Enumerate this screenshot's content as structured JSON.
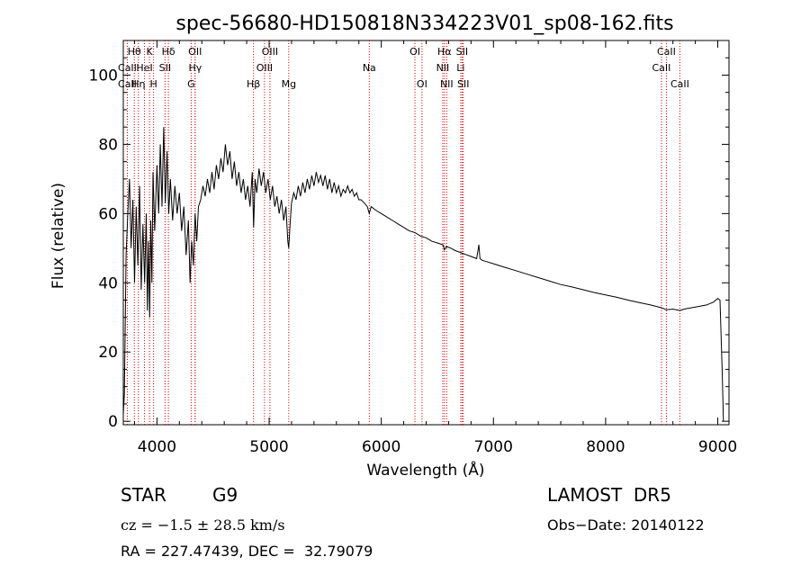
{
  "chart_data": {
    "type": "line",
    "title": "spec-56680-HD150818N334223V01_sp08-162.fits",
    "xlabel": "Wavelength (Å)",
    "ylabel": "Flux (relative)",
    "xlim": [
      3700,
      9100
    ],
    "ylim": [
      -1,
      110
    ],
    "x_ticks": [
      4000,
      5000,
      6000,
      7000,
      8000,
      9000
    ],
    "y_ticks": [
      0,
      20,
      40,
      60,
      80,
      100
    ],
    "grid": false,
    "series": [
      {
        "points": [
          [
            3700,
            2
          ],
          [
            3710,
            8
          ],
          [
            3725,
            48
          ],
          [
            3740,
            60
          ],
          [
            3755,
            70
          ],
          [
            3770,
            50
          ],
          [
            3785,
            64
          ],
          [
            3800,
            40
          ],
          [
            3815,
            62
          ],
          [
            3830,
            45
          ],
          [
            3845,
            68
          ],
          [
            3860,
            38
          ],
          [
            3875,
            57
          ],
          [
            3890,
            40
          ],
          [
            3905,
            60
          ],
          [
            3915,
            32
          ],
          [
            3925,
            52
          ],
          [
            3935,
            30
          ],
          [
            3945,
            58
          ],
          [
            3955,
            40
          ],
          [
            3965,
            72
          ],
          [
            3980,
            55
          ],
          [
            4000,
            74
          ],
          [
            4015,
            60
          ],
          [
            4030,
            80
          ],
          [
            4045,
            62
          ],
          [
            4060,
            85
          ],
          [
            4075,
            63
          ],
          [
            4090,
            78
          ],
          [
            4105,
            60
          ],
          [
            4120,
            70
          ],
          [
            4140,
            58
          ],
          [
            4160,
            68
          ],
          [
            4180,
            60
          ],
          [
            4200,
            66
          ],
          [
            4220,
            55
          ],
          [
            4240,
            62
          ],
          [
            4260,
            48
          ],
          [
            4280,
            58
          ],
          [
            4295,
            40
          ],
          [
            4310,
            52
          ],
          [
            4325,
            45
          ],
          [
            4340,
            60
          ],
          [
            4355,
            52
          ],
          [
            4370,
            62
          ],
          [
            4390,
            64
          ],
          [
            4410,
            68
          ],
          [
            4430,
            65
          ],
          [
            4450,
            70
          ],
          [
            4470,
            66
          ],
          [
            4490,
            72
          ],
          [
            4510,
            67
          ],
          [
            4530,
            74
          ],
          [
            4550,
            70
          ],
          [
            4570,
            76
          ],
          [
            4590,
            72
          ],
          [
            4610,
            80
          ],
          [
            4630,
            74
          ],
          [
            4650,
            78
          ],
          [
            4670,
            70
          ],
          [
            4690,
            75
          ],
          [
            4710,
            68
          ],
          [
            4730,
            72
          ],
          [
            4750,
            66
          ],
          [
            4770,
            70
          ],
          [
            4790,
            64
          ],
          [
            4810,
            68
          ],
          [
            4830,
            62
          ],
          [
            4850,
            72
          ],
          [
            4862,
            56
          ],
          [
            4875,
            70
          ],
          [
            4890,
            66
          ],
          [
            4910,
            73
          ],
          [
            4930,
            68
          ],
          [
            4950,
            72
          ],
          [
            4970,
            66
          ],
          [
            4990,
            70
          ],
          [
            5010,
            64
          ],
          [
            5030,
            68
          ],
          [
            5050,
            62
          ],
          [
            5070,
            65
          ],
          [
            5090,
            60
          ],
          [
            5110,
            64
          ],
          [
            5130,
            58
          ],
          [
            5150,
            62
          ],
          [
            5167,
            52
          ],
          [
            5175,
            50
          ],
          [
            5185,
            56
          ],
          [
            5200,
            63
          ],
          [
            5220,
            66
          ],
          [
            5240,
            64
          ],
          [
            5260,
            68
          ],
          [
            5280,
            65
          ],
          [
            5300,
            69
          ],
          [
            5320,
            66
          ],
          [
            5340,
            70
          ],
          [
            5360,
            67
          ],
          [
            5380,
            71
          ],
          [
            5400,
            68
          ],
          [
            5420,
            72
          ],
          [
            5440,
            69
          ],
          [
            5460,
            71
          ],
          [
            5480,
            68
          ],
          [
            5500,
            71
          ],
          [
            5520,
            67
          ],
          [
            5540,
            70
          ],
          [
            5560,
            66
          ],
          [
            5580,
            69
          ],
          [
            5600,
            66
          ],
          [
            5620,
            68
          ],
          [
            5640,
            65
          ],
          [
            5660,
            67
          ],
          [
            5680,
            66
          ],
          [
            5700,
            68
          ],
          [
            5720,
            66
          ],
          [
            5740,
            67
          ],
          [
            5760,
            65
          ],
          [
            5780,
            66
          ],
          [
            5800,
            64
          ],
          [
            5820,
            64
          ],
          [
            5850,
            63
          ],
          [
            5875,
            62
          ],
          [
            5893,
            60
          ],
          [
            5910,
            62
          ],
          [
            5950,
            61
          ],
          [
            6000,
            60
          ],
          [
            6050,
            59
          ],
          [
            6100,
            58
          ],
          [
            6150,
            57
          ],
          [
            6200,
            56
          ],
          [
            6250,
            55
          ],
          [
            6300,
            54.5
          ],
          [
            6350,
            53.5
          ],
          [
            6400,
            53
          ],
          [
            6450,
            52
          ],
          [
            6500,
            51.5
          ],
          [
            6550,
            51
          ],
          [
            6563,
            49.5
          ],
          [
            6580,
            50.5
          ],
          [
            6620,
            50
          ],
          [
            6660,
            49.3
          ],
          [
            6700,
            48.8
          ],
          [
            6750,
            48.2
          ],
          [
            6800,
            47.6
          ],
          [
            6850,
            47
          ],
          [
            6870,
            51
          ],
          [
            6880,
            47
          ],
          [
            6900,
            46.5
          ],
          [
            6950,
            46
          ],
          [
            7000,
            45.5
          ],
          [
            7100,
            44.5
          ],
          [
            7200,
            43.5
          ],
          [
            7300,
            42.5
          ],
          [
            7400,
            41.5
          ],
          [
            7500,
            40.5
          ],
          [
            7600,
            39.5
          ],
          [
            7700,
            38.8
          ],
          [
            7800,
            38
          ],
          [
            7900,
            37.2
          ],
          [
            8000,
            36.5
          ],
          [
            8100,
            35.8
          ],
          [
            8200,
            35
          ],
          [
            8300,
            34.3
          ],
          [
            8400,
            33.6
          ],
          [
            8498,
            32.8
          ],
          [
            8542,
            32.2
          ],
          [
            8600,
            32.4
          ],
          [
            8662,
            32
          ],
          [
            8700,
            32.4
          ],
          [
            8800,
            33
          ],
          [
            8900,
            33.6
          ],
          [
            8960,
            34.4
          ],
          [
            9000,
            35.5
          ],
          [
            9020,
            35
          ],
          [
            9040,
            14
          ],
          [
            9050,
            0
          ]
        ]
      }
    ],
    "lines": [
      {
        "label": "Hθ",
        "x": 3798,
        "row": 0
      },
      {
        "label": "K",
        "x": 3934,
        "row": 0
      },
      {
        "label": "Hδ",
        "x": 4102,
        "row": 0
      },
      {
        "label": "OII",
        "x": 4340,
        "row": 0
      },
      {
        "label": "OIII",
        "x": 5007,
        "row": 0
      },
      {
        "label": "OI",
        "x": 6300,
        "row": 0
      },
      {
        "label": "Hα",
        "x": 6563,
        "row": 0
      },
      {
        "label": "SII",
        "x": 6720,
        "row": 0
      },
      {
        "label": "CaII",
        "x": 8542,
        "row": 0
      },
      {
        "label": "CaII",
        "x": 8498,
        "row": 1
      },
      {
        "label": "HeI",
        "x": 3889,
        "row": 1
      },
      {
        "label": "H",
        "x": 3970,
        "row": 2
      },
      {
        "label": "SII",
        "x": 4072,
        "row": 1
      },
      {
        "label": "Hγ",
        "x": 4341,
        "row": 1
      },
      {
        "label": "OIII",
        "x": 4959,
        "row": 1
      },
      {
        "label": "NII",
        "x": 6548,
        "row": 1
      },
      {
        "label": "Li",
        "x": 6708,
        "row": 1
      },
      {
        "label": "CaII",
        "x": 3736,
        "row": 1
      },
      {
        "label": "CaII",
        "x": 3736,
        "row": 2
      },
      {
        "label": "Hη",
        "x": 3835,
        "row": 2
      },
      {
        "label": "G",
        "x": 4305,
        "row": 2
      },
      {
        "label": "Hβ",
        "x": 4861,
        "row": 2
      },
      {
        "label": "Mg",
        "x": 5175,
        "row": 2
      },
      {
        "label": "Na",
        "x": 5893,
        "row": 1
      },
      {
        "label": "OI",
        "x": 6363,
        "row": 2
      },
      {
        "label": "NII",
        "x": 6583,
        "row": 2
      },
      {
        "label": "SII",
        "x": 6731,
        "row": 2
      },
      {
        "label": "CaII",
        "x": 8662,
        "row": 2
      }
    ],
    "line_color": "#cc0000"
  },
  "footer": {
    "object_class": "STAR",
    "subclass": "G9",
    "survey": "LAMOST  DR5",
    "redshift": "cz = −1.5 ± 28.5 km/s",
    "obs_date": "Obs−Date: 20140122",
    "coords": "RA = 227.47439, DEC =  32.79079"
  }
}
